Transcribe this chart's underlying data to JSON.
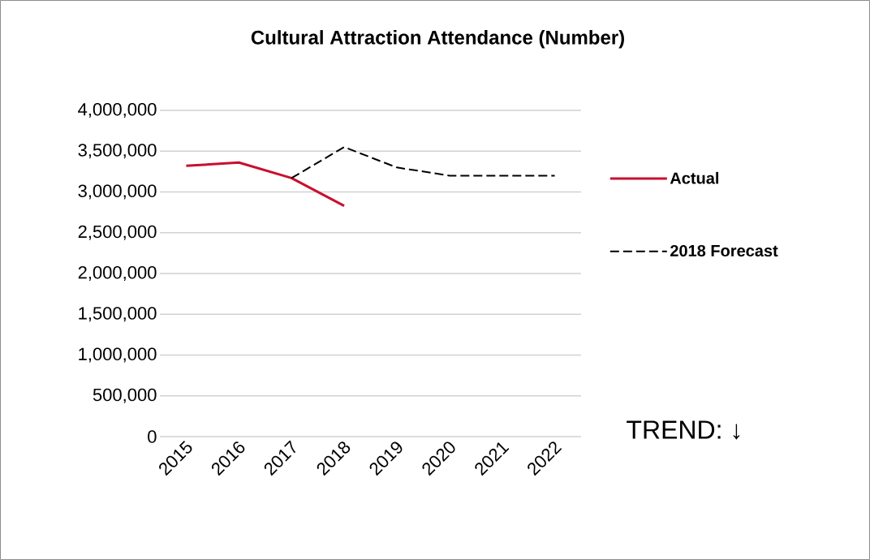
{
  "chart_data": {
    "type": "line",
    "title": "Cultural Attraction Attendance (Number)",
    "categories": [
      "2015",
      "2016",
      "2017",
      "2018",
      "2019",
      "2020",
      "2021",
      "2022"
    ],
    "series": [
      {
        "name": "Actual",
        "color": "#c8102e",
        "line_style": "solid",
        "values": [
          3320000,
          3360000,
          3170000,
          2830000,
          null,
          null,
          null,
          null
        ]
      },
      {
        "name": "2018 Forecast",
        "color": "#000000",
        "line_style": "dashed",
        "values": [
          null,
          null,
          3170000,
          3550000,
          3300000,
          3200000,
          3200000,
          3200000
        ]
      }
    ],
    "ylim": [
      0,
      4000000
    ],
    "yticks": [
      {
        "value": 0,
        "label": "0"
      },
      {
        "value": 500000,
        "label": "500,000"
      },
      {
        "value": 1000000,
        "label": "1,000,000"
      },
      {
        "value": 1500000,
        "label": "1,500,000"
      },
      {
        "value": 2000000,
        "label": "2,000,000"
      },
      {
        "value": 2500000,
        "label": "2,500,000"
      },
      {
        "value": 3000000,
        "label": "3,000,000"
      },
      {
        "value": 3500000,
        "label": "3,500,000"
      },
      {
        "value": 4000000,
        "label": "4,000,000"
      }
    ],
    "grid": "y",
    "legend": "right",
    "marker": "none",
    "annotations": [
      "TREND: ↓"
    ]
  }
}
